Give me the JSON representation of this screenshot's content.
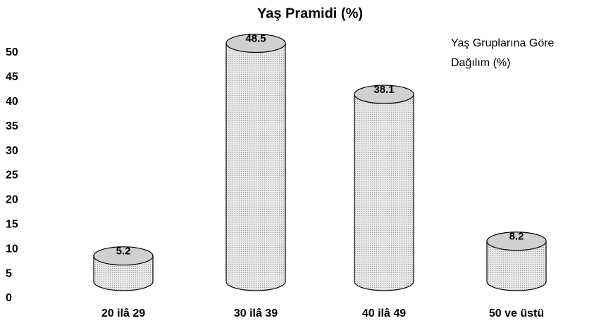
{
  "chart_data": {
    "type": "bar",
    "title": "Yaş Pramidi (%)",
    "categories": [
      "20 ilâ 29",
      "30 ilâ 39",
      "40 ilâ 49",
      "50 ve üstü"
    ],
    "series": [
      {
        "name": "Yaş Gruplarına Göre Dağılım (%)",
        "color": "#d0d0d0",
        "values": [
          5.2,
          48.5,
          38.1,
          8.2
        ]
      }
    ],
    "ylim": [
      0,
      50
    ],
    "yticks": [
      0,
      5,
      10,
      15,
      20,
      25,
      30,
      35,
      40,
      45,
      50
    ],
    "grid": false
  }
}
